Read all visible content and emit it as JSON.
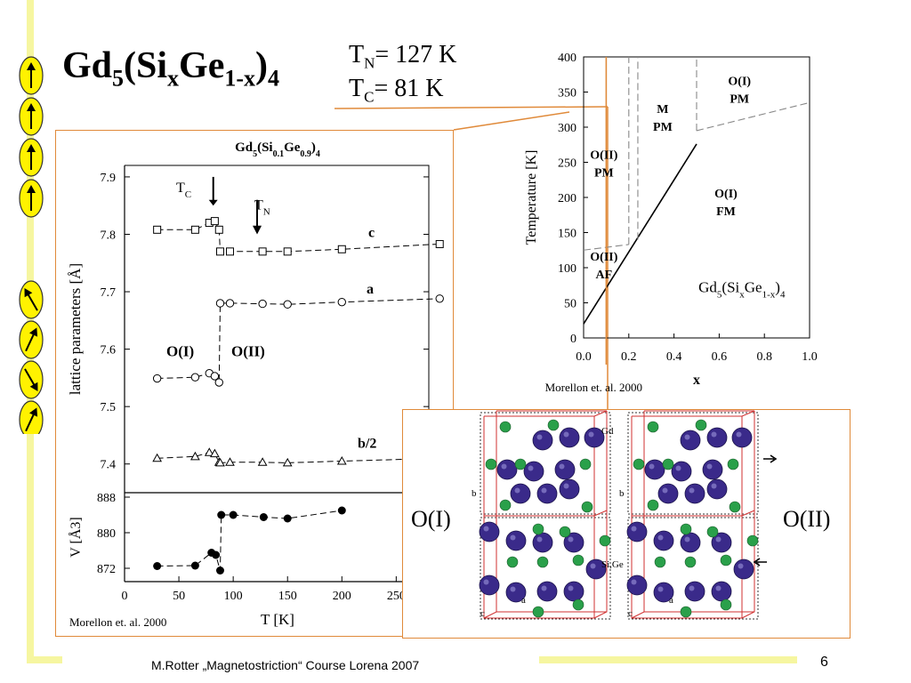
{
  "slide": {
    "title_main": "Gd",
    "title_sub1": "5",
    "title_mid": "(Si",
    "title_sub2": "x",
    "title_mid2": "Ge",
    "title_sub3": "1-x",
    "title_end": ")",
    "title_sub4": "4",
    "tn_label": "T",
    "tn_sub": "N",
    "tn_value": "= 127 K",
    "tc_label": "T",
    "tc_sub": "C",
    "tc_value": "= 81 K",
    "footer": "M.Rotter „Magnetostriction“ Course Lorena 2007",
    "page_number": "6",
    "spin_arrows": [
      "up",
      "up",
      "up",
      "up",
      "up-left",
      "up-right",
      "down-right",
      "up-right"
    ]
  },
  "chart_data": [
    {
      "type": "line",
      "title_base": "Gd",
      "title_parts": [
        "Gd",
        "5",
        "(Si",
        "0.1",
        "Ge",
        "0.9",
        ")",
        "4"
      ],
      "xlabel": "T [K]",
      "ylabel_top": "lattice parameters [Å]",
      "ylabel_bottom": "V [Å3]",
      "xlim": [
        0,
        280
      ],
      "ylim_top": [
        7.35,
        7.92
      ],
      "ylim_bottom": [
        869,
        889
      ],
      "xticks": [
        0,
        50,
        100,
        150,
        200,
        250
      ],
      "yticks_top": [
        7.4,
        7.5,
        7.6,
        7.7,
        7.8,
        7.9
      ],
      "yticks_bottom": [
        872,
        880,
        888
      ],
      "annotations": {
        "tc": {
          "text": "T",
          "sub": "C",
          "x": 80
        },
        "tn": {
          "text": "T",
          "sub": "N",
          "x": 122
        },
        "oi": "O(I)",
        "oii": "O(II)"
      },
      "credit": "Morellon et. al. 2000",
      "series": [
        {
          "name": "c",
          "marker": "square",
          "x": [
            30,
            65,
            78,
            83,
            87,
            88,
            97,
            127,
            150,
            200,
            290
          ],
          "y": [
            7.808,
            7.808,
            7.82,
            7.823,
            7.808,
            7.77,
            7.77,
            7.77,
            7.77,
            7.774,
            7.783
          ]
        },
        {
          "name": "a",
          "marker": "circle",
          "x": [
            30,
            65,
            78,
            83,
            87,
            88,
            97,
            127,
            150,
            200,
            290
          ],
          "y": [
            7.549,
            7.551,
            7.558,
            7.553,
            7.542,
            7.68,
            7.68,
            7.679,
            7.678,
            7.682,
            7.688
          ]
        },
        {
          "name": "b/2",
          "marker": "triangle",
          "x": [
            30,
            65,
            78,
            83,
            87,
            88,
            97,
            127,
            150,
            200,
            290
          ],
          "y": [
            7.41,
            7.413,
            7.42,
            7.418,
            7.403,
            7.402,
            7.403,
            7.403,
            7.402,
            7.405,
            7.41
          ]
        },
        {
          "name": "V",
          "marker": "filled-circle",
          "x": [
            30,
            65,
            80,
            84,
            88,
            89,
            100,
            128,
            150,
            200
          ],
          "y": [
            872.5,
            872.6,
            875.5,
            875.0,
            871.5,
            884.0,
            884.0,
            883.5,
            883.2,
            885.0
          ]
        }
      ]
    },
    {
      "type": "line",
      "xlabel": "x",
      "ylabel": "Temperature [K]",
      "xlim": [
        0,
        1.0
      ],
      "ylim": [
        0,
        400
      ],
      "xticks": [
        "0.0",
        "0.2",
        "0.4",
        "0.6",
        "0.8",
        "1.0"
      ],
      "yticks": [
        "0",
        "50",
        "100",
        "150",
        "200",
        "250",
        "300",
        "350",
        "400"
      ],
      "region_labels": [
        {
          "text1": "O(I)",
          "text2": "PM",
          "x": 0.69,
          "y": 360
        },
        {
          "text1": "M",
          "text2": "PM",
          "x": 0.35,
          "y": 320
        },
        {
          "text1": "O(II)",
          "text2": "PM",
          "x": 0.09,
          "y": 255
        },
        {
          "text1": "O(I)",
          "text2": "FM",
          "x": 0.63,
          "y": 200
        },
        {
          "text1": "O(II)",
          "text2": "AF",
          "x": 0.09,
          "y": 110
        }
      ],
      "formula": [
        "Gd",
        "5",
        "(Si",
        "x",
        "Ge",
        "1-x",
        ")",
        "4"
      ],
      "credit": "Morellon et. al. 2000",
      "lines": [
        {
          "style": "solid",
          "x": [
            0.0,
            0.5
          ],
          "y": [
            20,
            276
          ]
        },
        {
          "style": "dashed",
          "x": [
            0.0,
            0.2
          ],
          "y": [
            125,
            133
          ]
        },
        {
          "style": "dashed",
          "x": [
            0.2,
            0.2
          ],
          "y": [
            133,
            400
          ]
        },
        {
          "style": "dashed",
          "x": [
            0.24,
            0.24
          ],
          "y": [
            140,
            400
          ]
        },
        {
          "style": "dashed",
          "x": [
            0.5,
            0.5
          ],
          "y": [
            295,
            400
          ]
        },
        {
          "style": "dashed",
          "x": [
            0.5,
            1.0
          ],
          "y": [
            295,
            335
          ]
        }
      ],
      "marker_x": 0.1
    }
  ],
  "crystal": {
    "label_left": "O(I)",
    "label_right": "O(II)",
    "atom_gd": "Gd",
    "atom_sige": "Si,Ge",
    "axis_b": "b",
    "axis_c": "c",
    "axis_a": "a",
    "colors": {
      "gd": "#3a2a8a",
      "sige": "#2aa04a",
      "cell": "#d03030",
      "panel_border": "#e08a3a"
    }
  }
}
